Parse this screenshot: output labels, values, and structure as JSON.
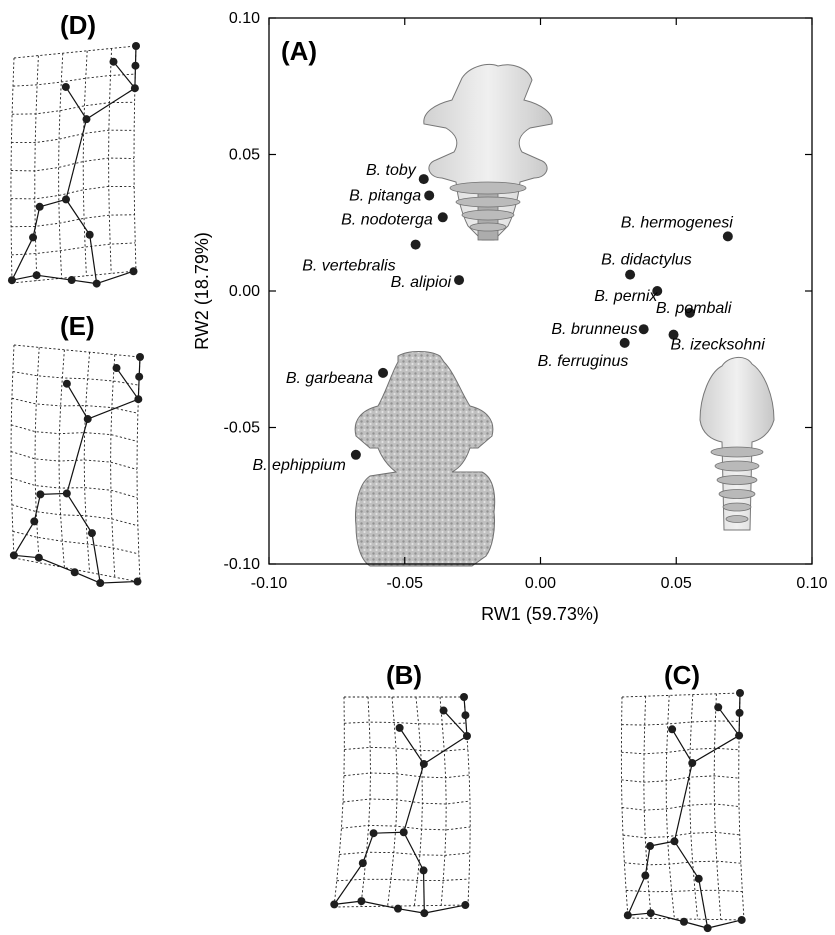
{
  "colors": {
    "ink": "#000000",
    "point": "#1e1e1e",
    "specimen": "#9a9a9a",
    "background": "#ffffff"
  },
  "panel_labels": {
    "A": "(A)",
    "B": "(B)",
    "C": "(C)",
    "D": "(D)",
    "E": "(E)"
  },
  "chart_data": {
    "type": "scatter",
    "title": "",
    "xlabel": "RW1 (59.73%)",
    "ylabel": "RW2 (18.79%)",
    "xlim": [
      -0.1,
      0.1
    ],
    "ylim": [
      -0.1,
      0.1
    ],
    "x_ticks": [
      "-0.10",
      "-0.05",
      "0.00",
      "0.05",
      "0.10"
    ],
    "y_ticks": [
      "0.10",
      "0.05",
      "0.00",
      "-0.05",
      "-0.10"
    ],
    "grid": false,
    "legend": "none",
    "points": [
      {
        "label": "B. toby",
        "x": -0.043,
        "y": 0.041
      },
      {
        "label": "B. pitanga",
        "x": -0.041,
        "y": 0.035
      },
      {
        "label": "B. nodoterga",
        "x": -0.036,
        "y": 0.027
      },
      {
        "label": "B. vertebralis",
        "x": -0.046,
        "y": 0.017
      },
      {
        "label": "B. alipioi",
        "x": -0.03,
        "y": 0.004
      },
      {
        "label": "B. garbeana",
        "x": -0.058,
        "y": -0.03
      },
      {
        "label": "B. ephippium",
        "x": -0.068,
        "y": -0.06
      },
      {
        "label": "B. hermogenesi",
        "x": 0.069,
        "y": 0.02
      },
      {
        "label": "B. didactylus",
        "x": 0.033,
        "y": 0.006
      },
      {
        "label": "B. pernix",
        "x": 0.043,
        "y": 0.0
      },
      {
        "label": "B. pombali",
        "x": 0.055,
        "y": -0.008
      },
      {
        "label": "B. brunneus",
        "x": 0.038,
        "y": -0.014
      },
      {
        "label": "B. izecksohni",
        "x": 0.049,
        "y": -0.016
      },
      {
        "label": "B. ferruginus",
        "x": 0.031,
        "y": -0.019
      }
    ]
  }
}
